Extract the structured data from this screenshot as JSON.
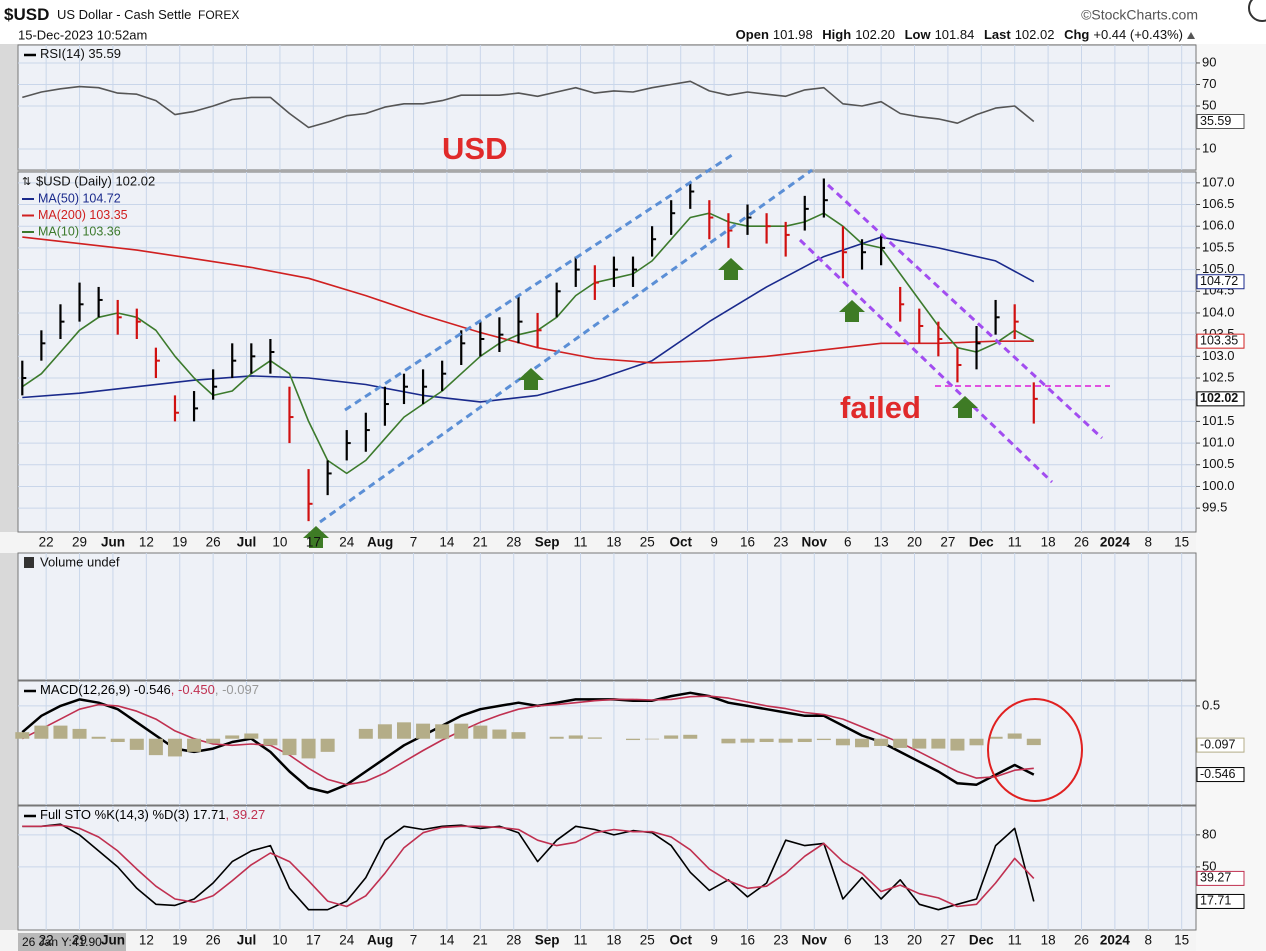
{
  "header": {
    "symbol": "$USD",
    "name": "US Dollar - Cash Settle",
    "exchange": "FOREX",
    "source": "©StockCharts.com",
    "datetime": "15-Dec-2023 10:52am",
    "quote": [
      {
        "label": "Open",
        "value": "101.98"
      },
      {
        "label": "High",
        "value": "102.20"
      },
      {
        "label": "Low",
        "value": "101.84"
      },
      {
        "label": "Last",
        "value": "102.02"
      },
      {
        "label": "Chg",
        "value": "+0.44 (+0.43%)"
      }
    ]
  },
  "crosshair_label": "26 Jan Y:41.90",
  "chart_data": [
    {
      "type": "line",
      "title": "RSI(14) 35.59",
      "x": [
        -5,
        -1,
        3,
        7,
        11,
        15,
        19,
        23,
        27,
        31,
        35,
        39,
        43,
        47,
        51,
        55,
        59,
        63,
        67,
        71,
        75,
        79,
        83,
        87,
        91,
        95,
        99,
        103,
        107,
        111,
        115,
        119,
        123,
        127,
        131,
        135,
        139,
        143,
        147,
        151,
        155,
        159,
        163,
        167,
        171,
        175,
        179,
        183,
        187,
        191,
        195,
        199,
        203,
        207
      ],
      "series": [
        {
          "color": "#555555",
          "last_label": "35.59",
          "values": [
            58,
            63,
            66,
            68,
            67,
            62,
            61,
            55,
            42,
            45,
            50,
            56,
            58,
            58,
            43,
            30,
            35,
            41,
            43,
            49,
            52,
            52,
            55,
            60,
            60,
            60,
            62,
            59,
            63,
            67,
            62,
            64,
            63,
            67,
            70,
            73,
            64,
            60,
            63,
            61,
            59,
            65,
            67,
            52,
            50,
            54,
            43,
            40,
            38,
            34,
            42,
            48,
            50,
            35.59
          ]
        }
      ],
      "ylim": [
        -9.5,
        106.7
      ],
      "yticks": [
        10,
        50,
        70,
        90
      ],
      "grid": true
    },
    {
      "type": "ohlc",
      "title": "$USD (Daily) 102.02",
      "x": [
        -5,
        -1,
        3,
        7,
        11,
        15,
        19,
        23,
        27,
        31,
        35,
        39,
        43,
        47,
        51,
        55,
        59,
        63,
        67,
        71,
        75,
        79,
        83,
        87,
        91,
        95,
        99,
        103,
        107,
        111,
        115,
        119,
        123,
        127,
        131,
        135,
        139,
        143,
        147,
        151,
        155,
        159,
        163,
        167,
        171,
        175,
        179,
        183,
        187,
        191,
        195,
        199,
        203,
        207
      ],
      "high": [
        102.9,
        103.6,
        104.2,
        104.7,
        104.6,
        104.3,
        104.1,
        103.2,
        102.1,
        102.2,
        102.7,
        103.3,
        103.3,
        103.4,
        102.3,
        100.4,
        100.6,
        101.3,
        101.7,
        102.3,
        102.6,
        102.7,
        102.9,
        103.6,
        103.8,
        103.9,
        104.4,
        104.0,
        104.7,
        105.3,
        105.1,
        105.3,
        105.3,
        106.0,
        106.6,
        107.0,
        106.6,
        106.3,
        106.5,
        106.3,
        106.1,
        106.7,
        107.1,
        106.0,
        105.7,
        105.8,
        104.6,
        104.1,
        103.8,
        103.2,
        103.7,
        104.3,
        104.2,
        102.4
      ],
      "low": [
        102.1,
        102.9,
        103.4,
        103.8,
        103.9,
        103.5,
        103.4,
        102.5,
        101.5,
        101.5,
        102.0,
        102.5,
        102.6,
        102.6,
        101.0,
        99.2,
        99.8,
        100.6,
        100.8,
        101.4,
        101.9,
        101.9,
        102.2,
        102.8,
        103.0,
        103.1,
        103.3,
        103.2,
        103.9,
        104.6,
        104.3,
        104.6,
        104.6,
        105.3,
        105.8,
        106.4,
        105.7,
        105.5,
        105.8,
        105.6,
        105.3,
        105.9,
        106.2,
        104.8,
        105.0,
        105.1,
        103.8,
        103.3,
        103.0,
        102.4,
        102.7,
        103.5,
        103.4,
        101.45
      ],
      "close": [
        102.5,
        103.3,
        103.8,
        104.2,
        104.3,
        103.9,
        103.8,
        102.9,
        101.7,
        101.8,
        102.3,
        102.9,
        103.0,
        103.1,
        101.6,
        99.6,
        100.3,
        101.0,
        101.3,
        101.9,
        102.3,
        102.3,
        102.6,
        103.3,
        103.4,
        103.5,
        103.8,
        103.6,
        104.5,
        105.0,
        104.7,
        105.0,
        105.0,
        105.7,
        106.3,
        106.8,
        106.2,
        105.9,
        106.2,
        106.0,
        105.8,
        106.4,
        106.6,
        105.4,
        105.4,
        105.5,
        104.2,
        103.7,
        103.4,
        102.8,
        103.3,
        103.9,
        103.8,
        102.02
      ],
      "up_color": "#000000",
      "down_color": "#d01010",
      "last_label": "102.02",
      "series": [
        {
          "name": "MA(50) 104.72",
          "color": "#1a2a8c",
          "last_label": "104.72",
          "x": [
            -5,
            7,
            19,
            31,
            43,
            55,
            67,
            79,
            91,
            103,
            115,
            127,
            139,
            151,
            163,
            175,
            187,
            199,
            207
          ],
          "values": [
            102.05,
            102.15,
            102.3,
            102.45,
            102.55,
            102.5,
            102.35,
            102.1,
            101.95,
            102.1,
            102.45,
            102.9,
            103.8,
            104.6,
            105.3,
            105.75,
            105.5,
            105.2,
            104.72
          ]
        },
        {
          "name": "MA(200) 103.35",
          "color": "#d02020",
          "last_label": "103.35",
          "x": [
            -5,
            7,
            19,
            31,
            43,
            55,
            67,
            79,
            91,
            103,
            115,
            127,
            139,
            151,
            163,
            175,
            187,
            199,
            207
          ],
          "values": [
            105.75,
            105.6,
            105.45,
            105.25,
            105.05,
            104.8,
            104.4,
            103.95,
            103.55,
            103.2,
            102.95,
            102.85,
            102.9,
            103.0,
            103.15,
            103.3,
            103.3,
            103.35,
            103.35
          ]
        },
        {
          "name": "MA(10) 103.36",
          "color": "#3c7a2c",
          "values": [
            102.3,
            102.6,
            103.1,
            103.6,
            103.9,
            104.0,
            103.9,
            103.6,
            103.0,
            102.5,
            102.1,
            102.2,
            102.6,
            102.9,
            102.6,
            101.5,
            100.6,
            100.3,
            100.6,
            101.1,
            101.6,
            101.9,
            102.2,
            102.6,
            103.0,
            103.3,
            103.5,
            103.6,
            103.9,
            104.4,
            104.7,
            104.8,
            104.9,
            105.2,
            105.7,
            106.2,
            106.3,
            106.1,
            106.0,
            106.0,
            106.0,
            106.1,
            106.3,
            106.0,
            105.6,
            105.5,
            104.9,
            104.3,
            103.7,
            103.2,
            103.1,
            103.3,
            103.6,
            103.36
          ]
        }
      ],
      "xlim": [
        -5.9,
        241
      ],
      "xticks": [
        {
          "value": 0,
          "label": "22"
        },
        {
          "value": 7,
          "label": "29"
        },
        {
          "value": 14,
          "label": "Jun"
        },
        {
          "value": 21,
          "label": "12"
        },
        {
          "value": 28,
          "label": "19"
        },
        {
          "value": 35,
          "label": "26"
        },
        {
          "value": 42,
          "label": "Jul"
        },
        {
          "value": 49,
          "label": "10"
        },
        {
          "value": 56,
          "label": "17"
        },
        {
          "value": 63,
          "label": "24"
        },
        {
          "value": 70,
          "label": "Aug"
        },
        {
          "value": 77,
          "label": "7"
        },
        {
          "value": 84,
          "label": "14"
        },
        {
          "value": 91,
          "label": "21"
        },
        {
          "value": 98,
          "label": "28"
        },
        {
          "value": 105,
          "label": "Sep"
        },
        {
          "value": 112,
          "label": "11"
        },
        {
          "value": 119,
          "label": "18"
        },
        {
          "value": 126,
          "label": "25"
        },
        {
          "value": 133,
          "label": "Oct"
        },
        {
          "value": 140,
          "label": "9"
        },
        {
          "value": 147,
          "label": "16"
        },
        {
          "value": 154,
          "label": "23"
        },
        {
          "value": 161,
          "label": "Nov"
        },
        {
          "value": 168,
          "label": "6"
        },
        {
          "value": 175,
          "label": "13"
        },
        {
          "value": 182,
          "label": "20"
        },
        {
          "value": 189,
          "label": "27"
        },
        {
          "value": 196,
          "label": "Dec"
        },
        {
          "value": 203,
          "label": "11"
        },
        {
          "value": 210,
          "label": "18"
        },
        {
          "value": 217,
          "label": "26"
        },
        {
          "value": 224,
          "label": "2024"
        },
        {
          "value": 231,
          "label": "8"
        },
        {
          "value": 238,
          "label": "15"
        }
      ],
      "ylim": [
        98.95,
        107.25
      ],
      "yticks": [
        99.5,
        {
          "value": 100,
          "label": "100.0"
        },
        100.5,
        {
          "value": 101,
          "label": "101.0"
        },
        101.5,
        {
          "value": 102,
          "label": "102.0"
        },
        102.5,
        {
          "value": 103,
          "label": "103.0"
        },
        103.5,
        {
          "value": 104,
          "label": "104.0"
        },
        104.5,
        {
          "value": 105,
          "label": "105.0"
        },
        105.5,
        {
          "value": 106,
          "label": "106.0"
        },
        106.5,
        {
          "value": 107,
          "label": "107.0"
        }
      ],
      "grid": true,
      "annotations": [
        "USD",
        "failed"
      ]
    },
    {
      "type": "bar",
      "title": "Volume undef"
    },
    {
      "type": "macd",
      "x": [
        -5,
        -1,
        3,
        7,
        11,
        15,
        19,
        23,
        27,
        31,
        35,
        39,
        43,
        47,
        51,
        55,
        59,
        63,
        67,
        71,
        75,
        79,
        83,
        87,
        91,
        95,
        99,
        103,
        107,
        111,
        115,
        119,
        123,
        127,
        131,
        135,
        139,
        143,
        147,
        151,
        155,
        159,
        163,
        167,
        171,
        175,
        179,
        183,
        187,
        191,
        195,
        199,
        203,
        207
      ],
      "series": [
        {
          "name": "MACD(12,26,9) -0.546",
          "color": "#000000",
          "last_label": "-0.546",
          "values": [
            0.1,
            0.35,
            0.5,
            0.6,
            0.55,
            0.45,
            0.25,
            0.05,
            -0.15,
            -0.2,
            -0.15,
            -0.05,
            0.0,
            -0.2,
            -0.5,
            -0.75,
            -0.82,
            -0.7,
            -0.5,
            -0.3,
            -0.1,
            0.05,
            0.2,
            0.35,
            0.45,
            0.5,
            0.55,
            0.5,
            0.55,
            0.6,
            0.6,
            0.6,
            0.58,
            0.58,
            0.65,
            0.7,
            0.65,
            0.55,
            0.5,
            0.45,
            0.4,
            0.35,
            0.35,
            0.2,
            0.05,
            -0.05,
            -0.2,
            -0.35,
            -0.5,
            -0.68,
            -0.7,
            -0.55,
            -0.4,
            -0.546
          ]
        },
        {
          "name": ", -0.450",
          "color": "#c03050",
          "values": [
            0.0,
            0.15,
            0.3,
            0.45,
            0.52,
            0.5,
            0.42,
            0.3,
            0.12,
            0.0,
            -0.08,
            -0.1,
            -0.08,
            -0.1,
            -0.25,
            -0.45,
            -0.62,
            -0.7,
            -0.65,
            -0.52,
            -0.35,
            -0.18,
            -0.02,
            0.12,
            0.25,
            0.36,
            0.45,
            0.5,
            0.52,
            0.55,
            0.58,
            0.6,
            0.6,
            0.59,
            0.6,
            0.64,
            0.65,
            0.62,
            0.56,
            0.5,
            0.46,
            0.4,
            0.37,
            0.3,
            0.18,
            0.06,
            -0.06,
            -0.2,
            -0.35,
            -0.5,
            -0.6,
            -0.58,
            -0.48,
            -0.45
          ]
        },
        {
          "name": ", -0.097",
          "color": "#b4ad88",
          "type": "bar",
          "last_label": "-0.097",
          "values": [
            0.1,
            0.2,
            0.2,
            0.15,
            0.03,
            -0.05,
            -0.17,
            -0.25,
            -0.27,
            -0.2,
            -0.07,
            0.05,
            0.08,
            -0.1,
            -0.25,
            -0.3,
            -0.2,
            0.0,
            0.15,
            0.22,
            0.25,
            0.23,
            0.22,
            0.23,
            0.2,
            0.14,
            0.1,
            0.0,
            0.03,
            0.05,
            0.02,
            0.0,
            -0.02,
            -0.01,
            0.05,
            0.06,
            0.0,
            -0.07,
            -0.06,
            -0.05,
            -0.06,
            -0.05,
            -0.02,
            -0.1,
            -0.13,
            -0.11,
            -0.14,
            -0.15,
            -0.15,
            -0.18,
            -0.1,
            0.03,
            0.08,
            -0.097
          ]
        }
      ],
      "ylim": [
        -1.01,
        0.88
      ],
      "yticks": [
        0.5
      ],
      "grid": true
    },
    {
      "type": "line",
      "x": [
        -5,
        -1,
        3,
        7,
        11,
        15,
        19,
        23,
        27,
        31,
        35,
        39,
        43,
        47,
        51,
        55,
        59,
        63,
        67,
        71,
        75,
        79,
        83,
        87,
        91,
        95,
        99,
        103,
        107,
        111,
        115,
        119,
        123,
        127,
        131,
        135,
        139,
        143,
        147,
        151,
        155,
        159,
        163,
        167,
        171,
        175,
        179,
        183,
        187,
        191,
        195,
        199,
        203,
        207
      ],
      "series": [
        {
          "name": "Full STO %K(14,3) %D(3) 17.71",
          "color": "#000000",
          "last_label": "17.71",
          "values": [
            88,
            88,
            90,
            80,
            65,
            50,
            30,
            15,
            14,
            20,
            35,
            55,
            65,
            70,
            30,
            10,
            10,
            18,
            40,
            75,
            88,
            85,
            88,
            89,
            86,
            88,
            82,
            55,
            75,
            88,
            85,
            80,
            84,
            82,
            70,
            45,
            28,
            38,
            22,
            35,
            75,
            70,
            72,
            20,
            40,
            20,
            38,
            15,
            10,
            15,
            20,
            70,
            86,
            17.71
          ]
        },
        {
          "name": ", 39.27",
          "color": "#c03050",
          "last_label": "39.27",
          "values": [
            88,
            88,
            89,
            86,
            78,
            65,
            48,
            32,
            20,
            17,
            23,
            37,
            52,
            63,
            55,
            37,
            18,
            13,
            23,
            44,
            68,
            82,
            87,
            88,
            88,
            87,
            85,
            75,
            70,
            73,
            82,
            85,
            83,
            83,
            78,
            66,
            48,
            37,
            30,
            32,
            44,
            60,
            72,
            55,
            44,
            27,
            33,
            25,
            21,
            13,
            15,
            35,
            58,
            39.27
          ]
        }
      ],
      "ylim": [
        -9,
        107
      ],
      "yticks": [
        50,
        80
      ],
      "grid": true
    }
  ]
}
